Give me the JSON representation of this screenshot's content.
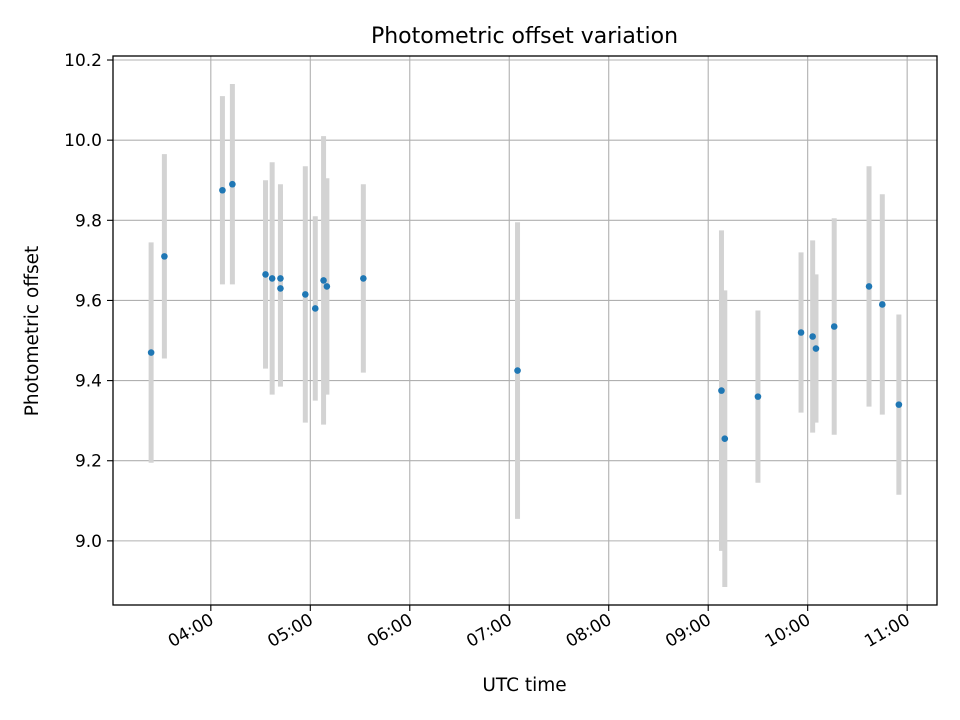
{
  "chart_data": {
    "type": "scatter",
    "title": "Photometric offset variation",
    "xlabel": "UTC time",
    "ylabel": "Photometric offset",
    "x_ticks": [
      "04:00",
      "05:00",
      "06:00",
      "07:00",
      "08:00",
      "09:00",
      "10:00",
      "11:00"
    ],
    "y_ticks": [
      "9.0",
      "9.2",
      "9.4",
      "9.6",
      "9.8",
      "10.0",
      "10.2"
    ],
    "xlim": [
      "03:01",
      "11:18"
    ],
    "ylim": [
      8.84,
      10.21
    ],
    "grid": true,
    "colors": {
      "point": "#1f77b4",
      "errorbar": "#d3d3d3",
      "grid": "#b0b0b0"
    },
    "points": [
      {
        "time": "03:24",
        "value": 9.47,
        "err": 0.275
      },
      {
        "time": "03:32",
        "value": 9.71,
        "err": 0.255
      },
      {
        "time": "04:07",
        "value": 9.875,
        "err": 0.235
      },
      {
        "time": "04:13",
        "value": 9.89,
        "err": 0.25
      },
      {
        "time": "04:33",
        "value": 9.665,
        "err": 0.235
      },
      {
        "time": "04:37",
        "value": 9.655,
        "err": 0.29
      },
      {
        "time": "04:42",
        "value": 9.63,
        "err": 0.245
      },
      {
        "time": "04:42",
        "value": 9.655,
        "err": 0.235
      },
      {
        "time": "04:57",
        "value": 9.615,
        "err": 0.32
      },
      {
        "time": "05:03",
        "value": 9.58,
        "err": 0.23
      },
      {
        "time": "05:08",
        "value": 9.65,
        "err": 0.36
      },
      {
        "time": "05:10",
        "value": 9.635,
        "err": 0.27
      },
      {
        "time": "05:32",
        "value": 9.655,
        "err": 0.235
      },
      {
        "time": "07:05",
        "value": 9.425,
        "err": 0.37
      },
      {
        "time": "09:08",
        "value": 9.375,
        "err": 0.4
      },
      {
        "time": "09:10",
        "value": 9.255,
        "err": 0.37
      },
      {
        "time": "09:30",
        "value": 9.36,
        "err": 0.215
      },
      {
        "time": "09:56",
        "value": 9.52,
        "err": 0.2
      },
      {
        "time": "10:03",
        "value": 9.51,
        "err": 0.24
      },
      {
        "time": "10:05",
        "value": 9.48,
        "err": 0.185
      },
      {
        "time": "10:16",
        "value": 9.535,
        "err": 0.27
      },
      {
        "time": "10:37",
        "value": 9.635,
        "err": 0.3
      },
      {
        "time": "10:45",
        "value": 9.59,
        "err": 0.275
      },
      {
        "time": "10:55",
        "value": 9.34,
        "err": 0.225
      }
    ]
  }
}
